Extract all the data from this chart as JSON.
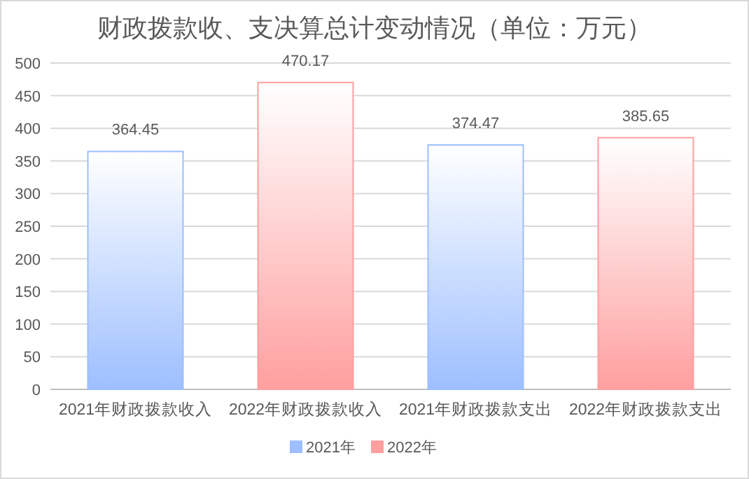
{
  "chart_data": {
    "type": "bar",
    "title": "财政拨款收、支决算总计变动情况（单位：万元）",
    "categories": [
      "2021年财政拨款收入",
      "2022年财政拨款收入",
      "2021年财政拨款支出",
      "2022年财政拨款支出"
    ],
    "series": [
      {
        "name": "2021年",
        "color": "#9dbfff",
        "values": [
          364.45,
          null,
          374.47,
          null
        ]
      },
      {
        "name": "2022年",
        "color": "#ff9f9f",
        "values": [
          null,
          470.17,
          null,
          385.65
        ]
      }
    ],
    "ylim": [
      0,
      500
    ],
    "yticks": [
      0,
      50,
      100,
      150,
      200,
      250,
      300,
      350,
      400,
      450,
      500
    ],
    "grid": "y",
    "data_labels": true,
    "legend": "bottom"
  }
}
